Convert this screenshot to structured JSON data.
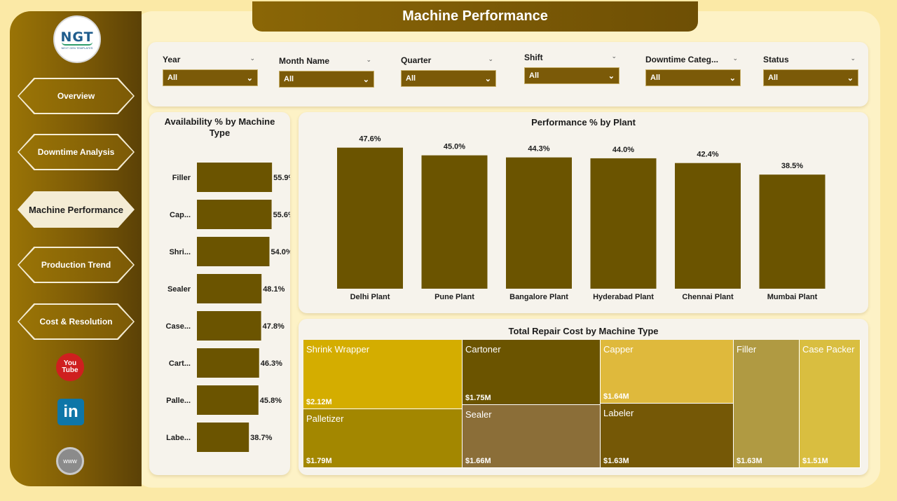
{
  "header": {
    "title": "Machine Performance"
  },
  "logo": {
    "text": "NGT",
    "tagline": "NEXT GEN TEMPLATES"
  },
  "sidebar": {
    "items": [
      {
        "label": "Overview",
        "active": false
      },
      {
        "label": "Downtime Analysis",
        "active": false
      },
      {
        "label": "Machine Performance",
        "active": true
      },
      {
        "label": "Production Trend",
        "active": false
      },
      {
        "label": "Cost & Resolution",
        "active": false
      }
    ],
    "social": [
      {
        "icon": "youtube-icon",
        "line1": "You",
        "line2": "Tube"
      },
      {
        "icon": "linkedin-icon",
        "text": "in"
      },
      {
        "icon": "globe-icon",
        "text": "www"
      }
    ]
  },
  "filters": [
    {
      "label": "Year",
      "value": "All"
    },
    {
      "label": "Month Name",
      "value": "All"
    },
    {
      "label": "Quarter",
      "value": "All"
    },
    {
      "label": "Shift",
      "value": "All"
    },
    {
      "label": "Downtime Categ...",
      "value": "All"
    },
    {
      "label": "Status",
      "value": "All"
    }
  ],
  "colors": {
    "bar": "#6b5400",
    "accent": "#7b5a08"
  },
  "chart_data": [
    {
      "type": "bar",
      "orientation": "horizontal",
      "title": "Availability % by Machine Type",
      "categories": [
        "Filler",
        "Cap...",
        "Shri...",
        "Sealer",
        "Case...",
        "Cart...",
        "Palle...",
        "Labe..."
      ],
      "values": [
        55.9,
        55.6,
        54.0,
        48.1,
        47.8,
        46.3,
        45.8,
        38.7
      ],
      "labels": [
        "55.9%",
        "55.6%",
        "54.0%",
        "48.1%",
        "47.8%",
        "46.3%",
        "45.8%",
        "38.7%"
      ],
      "xlim": [
        0,
        60
      ]
    },
    {
      "type": "bar",
      "title": "Performance % by Plant",
      "categories": [
        "Delhi Plant",
        "Pune Plant",
        "Bangalore Plant",
        "Hyderabad Plant",
        "Chennai Plant",
        "Mumbai Plant"
      ],
      "values": [
        47.6,
        45.0,
        44.3,
        44.0,
        42.4,
        38.5
      ],
      "labels": [
        "47.6%",
        "45.0%",
        "44.3%",
        "44.0%",
        "42.4%",
        "38.5%"
      ],
      "ylim": [
        0,
        48
      ]
    },
    {
      "type": "treemap",
      "title": "Total Repair Cost by Machine Type",
      "items": [
        {
          "name": "Shrink Wrapper",
          "value": 2.12,
          "label": "$2.12M",
          "color": "#d4ad00"
        },
        {
          "name": "Palletizer",
          "value": 1.79,
          "label": "$1.79M",
          "color": "#a38700"
        },
        {
          "name": "Cartoner",
          "value": 1.75,
          "label": "$1.75M",
          "color": "#6b5400"
        },
        {
          "name": "Sealer",
          "value": 1.66,
          "label": "$1.66M",
          "color": "#8b6e38"
        },
        {
          "name": "Capper",
          "value": 1.64,
          "label": "$1.64M",
          "color": "#dfb93c"
        },
        {
          "name": "Labeler",
          "value": 1.63,
          "label": "$1.63M",
          "color": "#755806"
        },
        {
          "name": "Filler",
          "value": 1.63,
          "label": "$1.63M",
          "color": "#b09a42"
        },
        {
          "name": "Case Packer",
          "value": 1.51,
          "label": "$1.51M",
          "color": "#d9be40"
        }
      ]
    }
  ]
}
